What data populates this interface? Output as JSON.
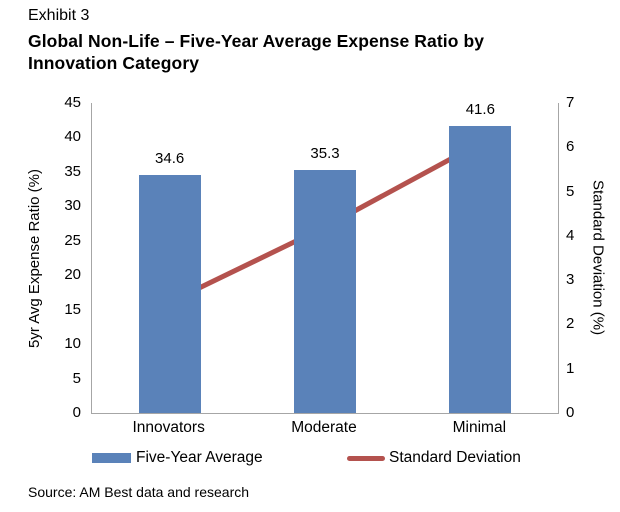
{
  "header": {
    "exhibit": "Exhibit 3",
    "title": "Global Non-Life – Five-Year Average Expense Ratio by Innovation Category"
  },
  "chart_data": {
    "type": "bar",
    "subtype": "bar+line dual-axis",
    "title": "Global Non-Life – Five-Year Average Expense Ratio by Innovation Category",
    "categories": [
      "Innovators",
      "Moderate",
      "Minimal"
    ],
    "series": [
      {
        "name": "Five-Year Average",
        "type": "bar",
        "axis": "left",
        "values": [
          34.6,
          35.3,
          41.6
        ],
        "data_labels": [
          "34.6",
          "35.3",
          "41.6"
        ],
        "color": "#5a82b9"
      },
      {
        "name": "Standard Deviation",
        "type": "line",
        "axis": "right",
        "values": [
          2.5,
          4.2,
          6.1
        ],
        "color": "#b4524e"
      }
    ],
    "left_axis": {
      "label": "5yr Avg Expense Ratio (%)",
      "min": 0,
      "max": 45,
      "step": 5
    },
    "right_axis": {
      "label": "Standard Deviation (%)",
      "min": 0,
      "max": 7,
      "step": 1
    },
    "legend": [
      {
        "label": "Five-Year Average",
        "swatch": "bar"
      },
      {
        "label": "Standard Deviation",
        "swatch": "line"
      }
    ],
    "grid": false,
    "legend_position": "bottom",
    "axis_line_color": "#a6a6a6"
  },
  "footer": {
    "source": "Source: AM Best data and research"
  }
}
